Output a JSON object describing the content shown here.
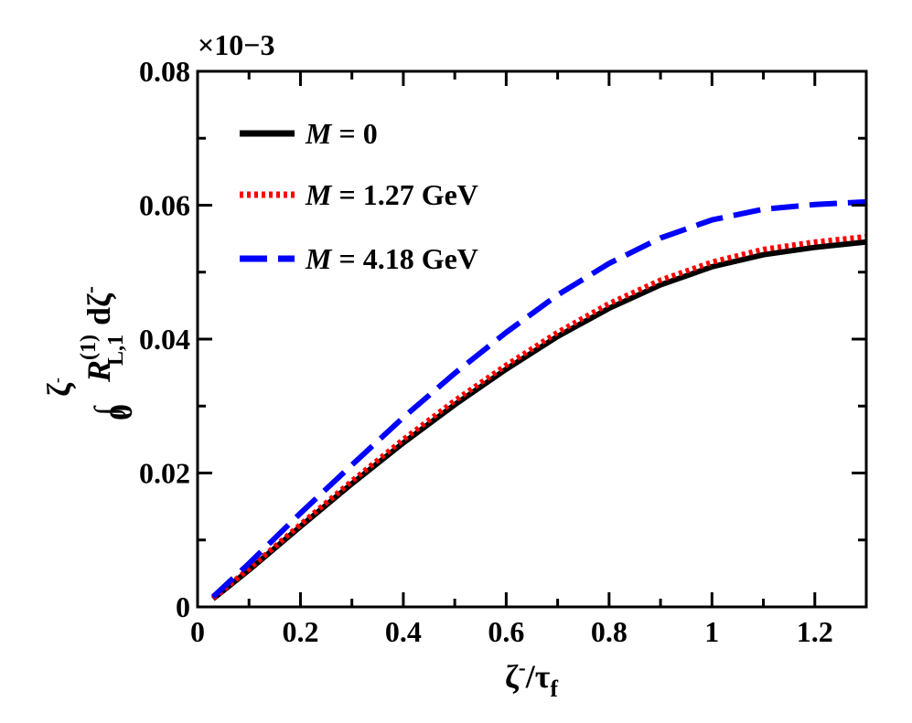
{
  "chart_data": {
    "type": "line",
    "multiplier": "×10−3",
    "xlabel": {
      "main": "ζ",
      "main_sup": "-",
      "slash": "/τ",
      "sub": "f"
    },
    "ylabel": {
      "integral": "∫",
      "lower_limit": "0",
      "upper_limit": "ζ",
      "upper_limit_sup": "-",
      "symbol": "R",
      "sup": "(1)",
      "sub": "L,1",
      "differential": "dζ",
      "differential_sup": "-"
    },
    "xlim": [
      0,
      1.3
    ],
    "ylim": [
      0,
      0.08
    ],
    "xticks": [
      0,
      0.2,
      0.4,
      0.6,
      0.8,
      1,
      1.2
    ],
    "xtick_labels": [
      "0",
      "0.2",
      "0.4",
      "0.6",
      "0.8",
      "1",
      "1.2"
    ],
    "yticks": [
      0,
      0.02,
      0.04,
      0.06,
      0.08
    ],
    "ytick_labels": [
      "0",
      "0.02",
      "0.04",
      "0.06",
      "0.08"
    ],
    "grid": false,
    "legend_position": "top-left",
    "series": [
      {
        "name": "M = 0",
        "legend_var": "M",
        "legend_rest": " = 0",
        "color": "#000000",
        "style": "solid",
        "x": [
          0.03,
          0.1,
          0.2,
          0.3,
          0.4,
          0.5,
          0.6,
          0.7,
          0.8,
          0.9,
          1.0,
          1.1,
          1.2,
          1.3
        ],
        "y": [
          0.0012,
          0.0055,
          0.012,
          0.0184,
          0.0245,
          0.0302,
          0.0355,
          0.0404,
          0.0446,
          0.0481,
          0.0508,
          0.0526,
          0.0537,
          0.0545
        ]
      },
      {
        "name": "M = 1.27 GeV",
        "legend_var": "M",
        "legend_rest": " = 1.27 GeV",
        "color": "#ff0000",
        "style": "dotted",
        "x": [
          0.03,
          0.1,
          0.2,
          0.3,
          0.4,
          0.5,
          0.6,
          0.7,
          0.8,
          0.9,
          1.0,
          1.1,
          1.2,
          1.3
        ],
        "y": [
          0.0013,
          0.0057,
          0.0123,
          0.0188,
          0.025,
          0.0308,
          0.0361,
          0.041,
          0.0453,
          0.0488,
          0.0515,
          0.0534,
          0.0545,
          0.0553
        ]
      },
      {
        "name": "M = 4.18 GeV",
        "legend_var": "M",
        "legend_rest": " = 4.18 GeV",
        "color": "#0000ff",
        "style": "dashed",
        "x": [
          0.03,
          0.1,
          0.2,
          0.3,
          0.4,
          0.5,
          0.6,
          0.7,
          0.8,
          0.9,
          1.0,
          1.1,
          1.2,
          1.3
        ],
        "y": [
          0.0015,
          0.0065,
          0.014,
          0.0212,
          0.0283,
          0.0349,
          0.041,
          0.0466,
          0.0513,
          0.0551,
          0.0578,
          0.0594,
          0.0601,
          0.0605
        ]
      }
    ]
  }
}
